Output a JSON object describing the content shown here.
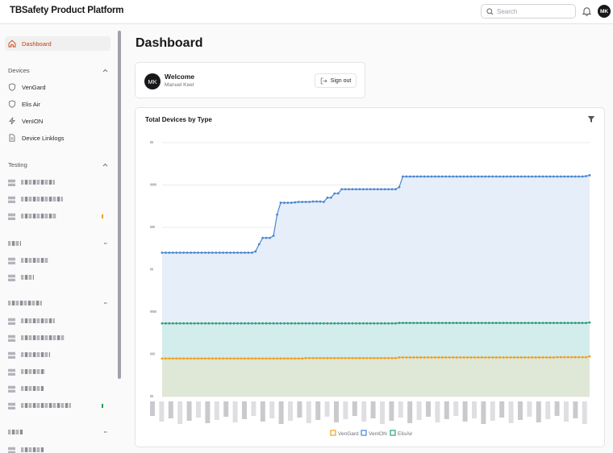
{
  "app": {
    "title": "TBSafety Product Platform"
  },
  "header": {
    "search_placeholder": "Search",
    "avatar_initials": "MK"
  },
  "sidebar": {
    "dashboard": "Dashboard",
    "devices_section": "Devices",
    "devices": [
      "VenGard",
      "Elis Air",
      "VenION",
      "Device Linklogs"
    ],
    "testing_section": "Testing"
  },
  "page": {
    "title": "Dashboard"
  },
  "welcome": {
    "title": "Welcome",
    "name": "Manuel Keel",
    "avatar_initials": "MK",
    "signout_label": "Sign out"
  },
  "chart_data": {
    "type": "area",
    "title": "Total Devices by Type",
    "points": 120,
    "ylim": [
      0,
      6
    ],
    "series": [
      {
        "name": "VenGard",
        "color": "#f0a020",
        "fill": "#dfe7d6",
        "steps": [
          [
            0,
            0.9
          ],
          [
            40,
            0.91
          ],
          [
            66,
            0.925
          ],
          [
            110,
            0.93
          ],
          [
            119,
            0.95
          ]
        ]
      },
      {
        "name": "VenION",
        "color": "#4a86d0",
        "fill": "#e6eefa",
        "steps": [
          [
            0,
            3.4
          ],
          [
            26,
            3.43
          ],
          [
            27,
            3.6
          ],
          [
            28,
            3.75
          ],
          [
            31,
            3.8
          ],
          [
            32,
            4.3
          ],
          [
            33,
            4.58
          ],
          [
            37,
            4.59
          ],
          [
            38,
            4.6
          ],
          [
            42,
            4.61
          ],
          [
            45,
            4.6
          ],
          [
            46,
            4.7
          ],
          [
            48,
            4.8
          ],
          [
            50,
            4.9
          ],
          [
            60,
            4.9
          ],
          [
            62,
            4.9
          ],
          [
            66,
            4.95
          ],
          [
            67,
            5.2
          ],
          [
            110,
            5.2
          ],
          [
            118,
            5.21
          ],
          [
            119,
            5.23
          ]
        ]
      },
      {
        "name": "ElisAir",
        "color": "#2aa078",
        "fill": "#d3ecec",
        "steps": [
          [
            0,
            1.73
          ],
          [
            66,
            1.74
          ],
          [
            119,
            1.75
          ]
        ]
      }
    ]
  }
}
